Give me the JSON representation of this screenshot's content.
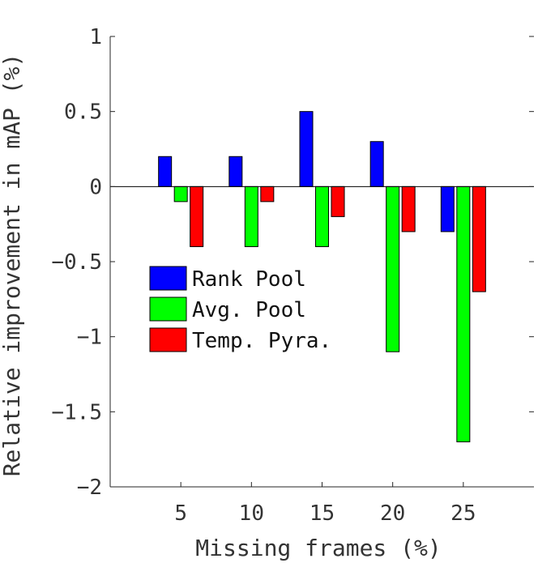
{
  "chart_data": {
    "type": "bar",
    "categories": [
      "5",
      "10",
      "15",
      "20",
      "25"
    ],
    "series": [
      {
        "name": "Rank Pool",
        "color": "#0000ff",
        "values": [
          0.2,
          0.2,
          0.5,
          0.3,
          -0.3
        ]
      },
      {
        "name": "Avg. Pool",
        "color": "#00ff00",
        "values": [
          -0.1,
          -0.4,
          -0.4,
          -1.1,
          -1.7
        ]
      },
      {
        "name": "Temp. Pyra.",
        "color": "#ff0000",
        "values": [
          -0.4,
          -0.1,
          -0.2,
          -0.3,
          -0.7
        ]
      }
    ],
    "xlabel": "Missing frames (%)",
    "ylabel": "Relative improvement in mAP (%)",
    "ylim": [
      -2,
      1
    ],
    "yticks": [
      "1",
      "0.5",
      "0",
      "−0.5",
      "−1",
      "−1.5",
      "−2"
    ],
    "ytick_values": [
      1,
      0.5,
      0,
      -0.5,
      -1,
      -1.5,
      -2
    ],
    "xlim": [
      0,
      30
    ],
    "x": [
      5,
      10,
      15,
      20,
      25
    ],
    "legend_position": "center-left",
    "grid": false
  }
}
